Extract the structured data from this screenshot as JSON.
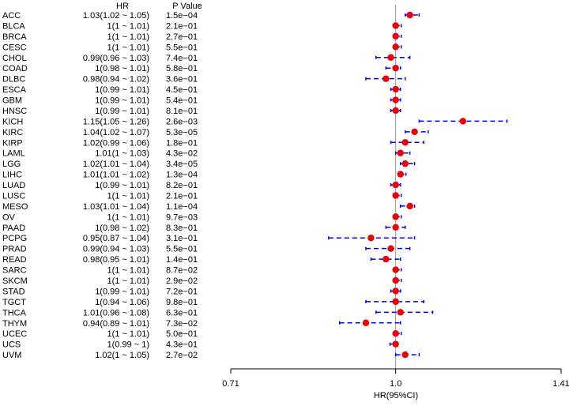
{
  "chart_data": {
    "type": "scatter",
    "title": "",
    "header": {
      "hr": "HR",
      "pvalue": "P Value"
    },
    "xlabel": "HR(95%CI)",
    "xscale": "log",
    "xlim": [
      0.71,
      1.41
    ],
    "xticks": [
      {
        "value": 0.71,
        "label": "0.71"
      },
      {
        "value": 1.0,
        "label": "1.0"
      },
      {
        "value": 1.41,
        "label": "1.41"
      }
    ],
    "reference_line": 1.0,
    "colors": {
      "point": "#ee0000",
      "ci": "#0000ee",
      "refline": "#999999"
    },
    "rows": [
      {
        "name": "ACC",
        "hr_text": "1.03(1.02 ~ 1.05)",
        "p": "1.5e−04",
        "hr": 1.03,
        "lo": 1.02,
        "hi": 1.05
      },
      {
        "name": "BLCA",
        "hr_text": "1(1 ~ 1.01)",
        "p": "2.1e−01",
        "hr": 1.0,
        "lo": 1.0,
        "hi": 1.01
      },
      {
        "name": "BRCA",
        "hr_text": "1(1 ~ 1.01)",
        "p": "2.7e−01",
        "hr": 1.0,
        "lo": 1.0,
        "hi": 1.01
      },
      {
        "name": "CESC",
        "hr_text": "1(1 ~ 1.01)",
        "p": "5.5e−01",
        "hr": 1.0,
        "lo": 1.0,
        "hi": 1.01
      },
      {
        "name": "CHOL",
        "hr_text": "0.99(0.96 ~ 1.03)",
        "p": "7.4e−01",
        "hr": 0.99,
        "lo": 0.96,
        "hi": 1.03
      },
      {
        "name": "COAD",
        "hr_text": "1(0.98 ~ 1.01)",
        "p": "5.8e−01",
        "hr": 1.0,
        "lo": 0.98,
        "hi": 1.01
      },
      {
        "name": "DLBC",
        "hr_text": "0.98(0.94 ~ 1.02)",
        "p": "3.6e−01",
        "hr": 0.98,
        "lo": 0.94,
        "hi": 1.02
      },
      {
        "name": "ESCA",
        "hr_text": "1(0.99 ~ 1.01)",
        "p": "4.5e−01",
        "hr": 1.0,
        "lo": 0.99,
        "hi": 1.01
      },
      {
        "name": "GBM",
        "hr_text": "1(0.99 ~ 1.01)",
        "p": "5.4e−01",
        "hr": 1.0,
        "lo": 0.99,
        "hi": 1.01
      },
      {
        "name": "HNSC",
        "hr_text": "1(0.99 ~ 1.01)",
        "p": "8.1e−01",
        "hr": 1.0,
        "lo": 0.99,
        "hi": 1.01
      },
      {
        "name": "KICH",
        "hr_text": "1.15(1.05 ~ 1.26)",
        "p": "2.6e−03",
        "hr": 1.15,
        "lo": 1.05,
        "hi": 1.26
      },
      {
        "name": "KIRC",
        "hr_text": "1.04(1.02 ~ 1.07)",
        "p": "5.3e−05",
        "hr": 1.04,
        "lo": 1.02,
        "hi": 1.07
      },
      {
        "name": "KIRP",
        "hr_text": "1.02(0.99 ~ 1.06)",
        "p": "1.8e−01",
        "hr": 1.02,
        "lo": 0.99,
        "hi": 1.06
      },
      {
        "name": "LAML",
        "hr_text": "1.01(1 ~ 1.03)",
        "p": "4.3e−02",
        "hr": 1.01,
        "lo": 1.0,
        "hi": 1.03
      },
      {
        "name": "LGG",
        "hr_text": "1.02(1.01 ~ 1.04)",
        "p": "3.4e−05",
        "hr": 1.02,
        "lo": 1.01,
        "hi": 1.04
      },
      {
        "name": "LIHC",
        "hr_text": "1.01(1.01 ~ 1.02)",
        "p": "1.3e−04",
        "hr": 1.01,
        "lo": 1.01,
        "hi": 1.02
      },
      {
        "name": "LUAD",
        "hr_text": "1(0.99 ~ 1.01)",
        "p": "8.2e−01",
        "hr": 1.0,
        "lo": 0.99,
        "hi": 1.01
      },
      {
        "name": "LUSC",
        "hr_text": "1(1 ~ 1.01)",
        "p": "2.1e−01",
        "hr": 1.0,
        "lo": 1.0,
        "hi": 1.01
      },
      {
        "name": "MESO",
        "hr_text": "1.03(1.01 ~ 1.04)",
        "p": "1.1e−04",
        "hr": 1.03,
        "lo": 1.01,
        "hi": 1.04
      },
      {
        "name": "OV",
        "hr_text": "1(1 ~ 1.01)",
        "p": "9.7e−03",
        "hr": 1.0,
        "lo": 1.0,
        "hi": 1.01
      },
      {
        "name": "PAAD",
        "hr_text": "1(0.98 ~ 1.02)",
        "p": "8.3e−01",
        "hr": 1.0,
        "lo": 0.98,
        "hi": 1.02
      },
      {
        "name": "PCPG",
        "hr_text": "0.95(0.87 ~ 1.04)",
        "p": "3.1e−01",
        "hr": 0.95,
        "lo": 0.87,
        "hi": 1.04
      },
      {
        "name": "PRAD",
        "hr_text": "0.99(0.94 ~ 1.03)",
        "p": "5.5e−01",
        "hr": 0.99,
        "lo": 0.94,
        "hi": 1.03
      },
      {
        "name": "READ",
        "hr_text": "0.98(0.95 ~ 1.01)",
        "p": "1.4e−01",
        "hr": 0.98,
        "lo": 0.95,
        "hi": 1.01
      },
      {
        "name": "SARC",
        "hr_text": "1(1 ~ 1.01)",
        "p": "8.7e−02",
        "hr": 1.0,
        "lo": 1.0,
        "hi": 1.01
      },
      {
        "name": "SKCM",
        "hr_text": "1(1 ~ 1.01)",
        "p": "2.9e−02",
        "hr": 1.0,
        "lo": 1.0,
        "hi": 1.01
      },
      {
        "name": "STAD",
        "hr_text": "1(0.99 ~ 1.01)",
        "p": "7.2e−01",
        "hr": 1.0,
        "lo": 0.99,
        "hi": 1.01
      },
      {
        "name": "TGCT",
        "hr_text": "1(0.94 ~ 1.06)",
        "p": "9.8e−01",
        "hr": 1.0,
        "lo": 0.94,
        "hi": 1.06
      },
      {
        "name": "THCA",
        "hr_text": "1.01(0.96 ~ 1.08)",
        "p": "6.3e−01",
        "hr": 1.01,
        "lo": 0.96,
        "hi": 1.08
      },
      {
        "name": "THYM",
        "hr_text": "0.94(0.89 ~ 1.01)",
        "p": "7.3e−02",
        "hr": 0.94,
        "lo": 0.89,
        "hi": 1.01
      },
      {
        "name": "UCEC",
        "hr_text": "1(1 ~ 1.01)",
        "p": "5.0e−01",
        "hr": 1.0,
        "lo": 1.0,
        "hi": 1.01
      },
      {
        "name": "UCS",
        "hr_text": "1(0.99 ~ 1)",
        "p": "4.3e−01",
        "hr": 1.0,
        "lo": 0.99,
        "hi": 1.0
      },
      {
        "name": "UVM",
        "hr_text": "1.02(1 ~ 1.05)",
        "p": "2.7e−02",
        "hr": 1.02,
        "lo": 1.0,
        "hi": 1.05
      }
    ]
  }
}
